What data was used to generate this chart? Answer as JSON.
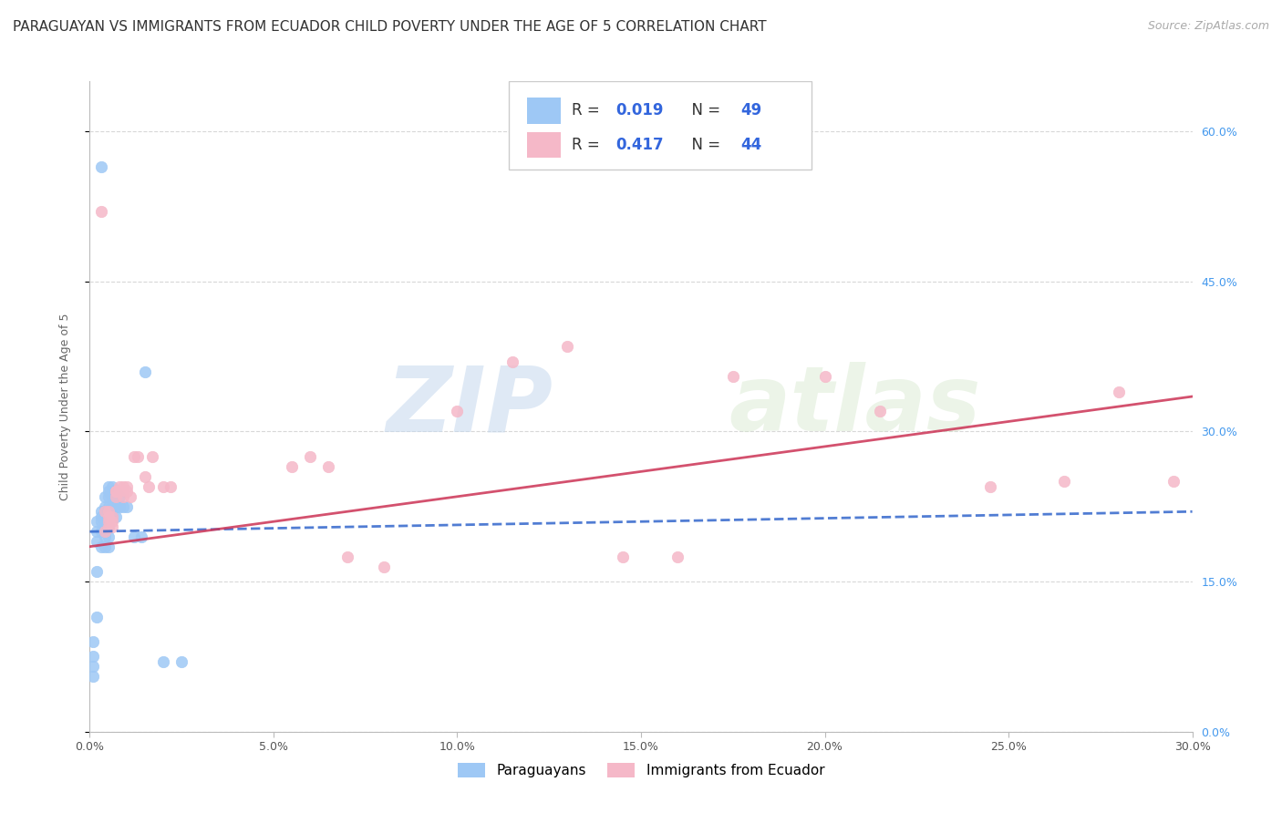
{
  "title": "PARAGUAYAN VS IMMIGRANTS FROM ECUADOR CHILD POVERTY UNDER THE AGE OF 5 CORRELATION CHART",
  "source": "Source: ZipAtlas.com",
  "ylabel": "Child Poverty Under the Age of 5",
  "xlim": [
    0.0,
    0.3
  ],
  "ylim": [
    0.0,
    0.65
  ],
  "background_color": "#ffffff",
  "grid_color": "#d8d8d8",
  "paraguayan_x": [
    0.003,
    0.001,
    0.001,
    0.001,
    0.001,
    0.002,
    0.002,
    0.002,
    0.002,
    0.002,
    0.003,
    0.003,
    0.003,
    0.003,
    0.003,
    0.004,
    0.004,
    0.004,
    0.004,
    0.004,
    0.004,
    0.004,
    0.004,
    0.005,
    0.005,
    0.005,
    0.005,
    0.005,
    0.005,
    0.005,
    0.005,
    0.006,
    0.006,
    0.006,
    0.006,
    0.006,
    0.007,
    0.007,
    0.007,
    0.007,
    0.008,
    0.008,
    0.009,
    0.01,
    0.012,
    0.014,
    0.015,
    0.02,
    0.025
  ],
  "paraguayan_y": [
    0.565,
    0.09,
    0.075,
    0.065,
    0.055,
    0.21,
    0.2,
    0.19,
    0.16,
    0.115,
    0.22,
    0.215,
    0.21,
    0.2,
    0.185,
    0.235,
    0.225,
    0.22,
    0.215,
    0.21,
    0.2,
    0.195,
    0.185,
    0.245,
    0.24,
    0.235,
    0.225,
    0.215,
    0.205,
    0.195,
    0.185,
    0.245,
    0.24,
    0.235,
    0.225,
    0.215,
    0.24,
    0.235,
    0.225,
    0.215,
    0.235,
    0.225,
    0.225,
    0.225,
    0.195,
    0.195,
    0.36,
    0.07,
    0.07
  ],
  "ecuadorian_x": [
    0.003,
    0.004,
    0.004,
    0.005,
    0.005,
    0.005,
    0.005,
    0.006,
    0.006,
    0.006,
    0.007,
    0.007,
    0.007,
    0.008,
    0.008,
    0.009,
    0.009,
    0.01,
    0.01,
    0.011,
    0.012,
    0.013,
    0.015,
    0.016,
    0.017,
    0.02,
    0.022,
    0.055,
    0.06,
    0.065,
    0.07,
    0.08,
    0.1,
    0.115,
    0.13,
    0.145,
    0.16,
    0.175,
    0.2,
    0.215,
    0.245,
    0.265,
    0.28,
    0.295
  ],
  "ecuadorian_y": [
    0.52,
    0.22,
    0.2,
    0.22,
    0.215,
    0.21,
    0.205,
    0.215,
    0.21,
    0.205,
    0.24,
    0.24,
    0.235,
    0.245,
    0.24,
    0.245,
    0.235,
    0.245,
    0.24,
    0.235,
    0.275,
    0.275,
    0.255,
    0.245,
    0.275,
    0.245,
    0.245,
    0.265,
    0.275,
    0.265,
    0.175,
    0.165,
    0.32,
    0.37,
    0.385,
    0.175,
    0.175,
    0.355,
    0.355,
    0.32,
    0.245,
    0.25,
    0.34,
    0.25
  ],
  "paraguayan_color": "#9ec8f5",
  "ecuadorian_color": "#f5b8c8",
  "trendline_paraguayan_color": "#3366cc",
  "trendline_ecuadorian_color": "#cc3355",
  "R_paraguayan": 0.019,
  "N_paraguayan": 49,
  "R_ecuadorian": 0.417,
  "N_ecuadorian": 44,
  "legend_paraguayan": "Paraguayans",
  "legend_ecuadorian": "Immigrants from Ecuador",
  "watermark_zip": "ZIP",
  "watermark_atlas": "atlas",
  "title_fontsize": 11,
  "source_fontsize": 9,
  "axis_label_fontsize": 9,
  "tick_fontsize": 9
}
